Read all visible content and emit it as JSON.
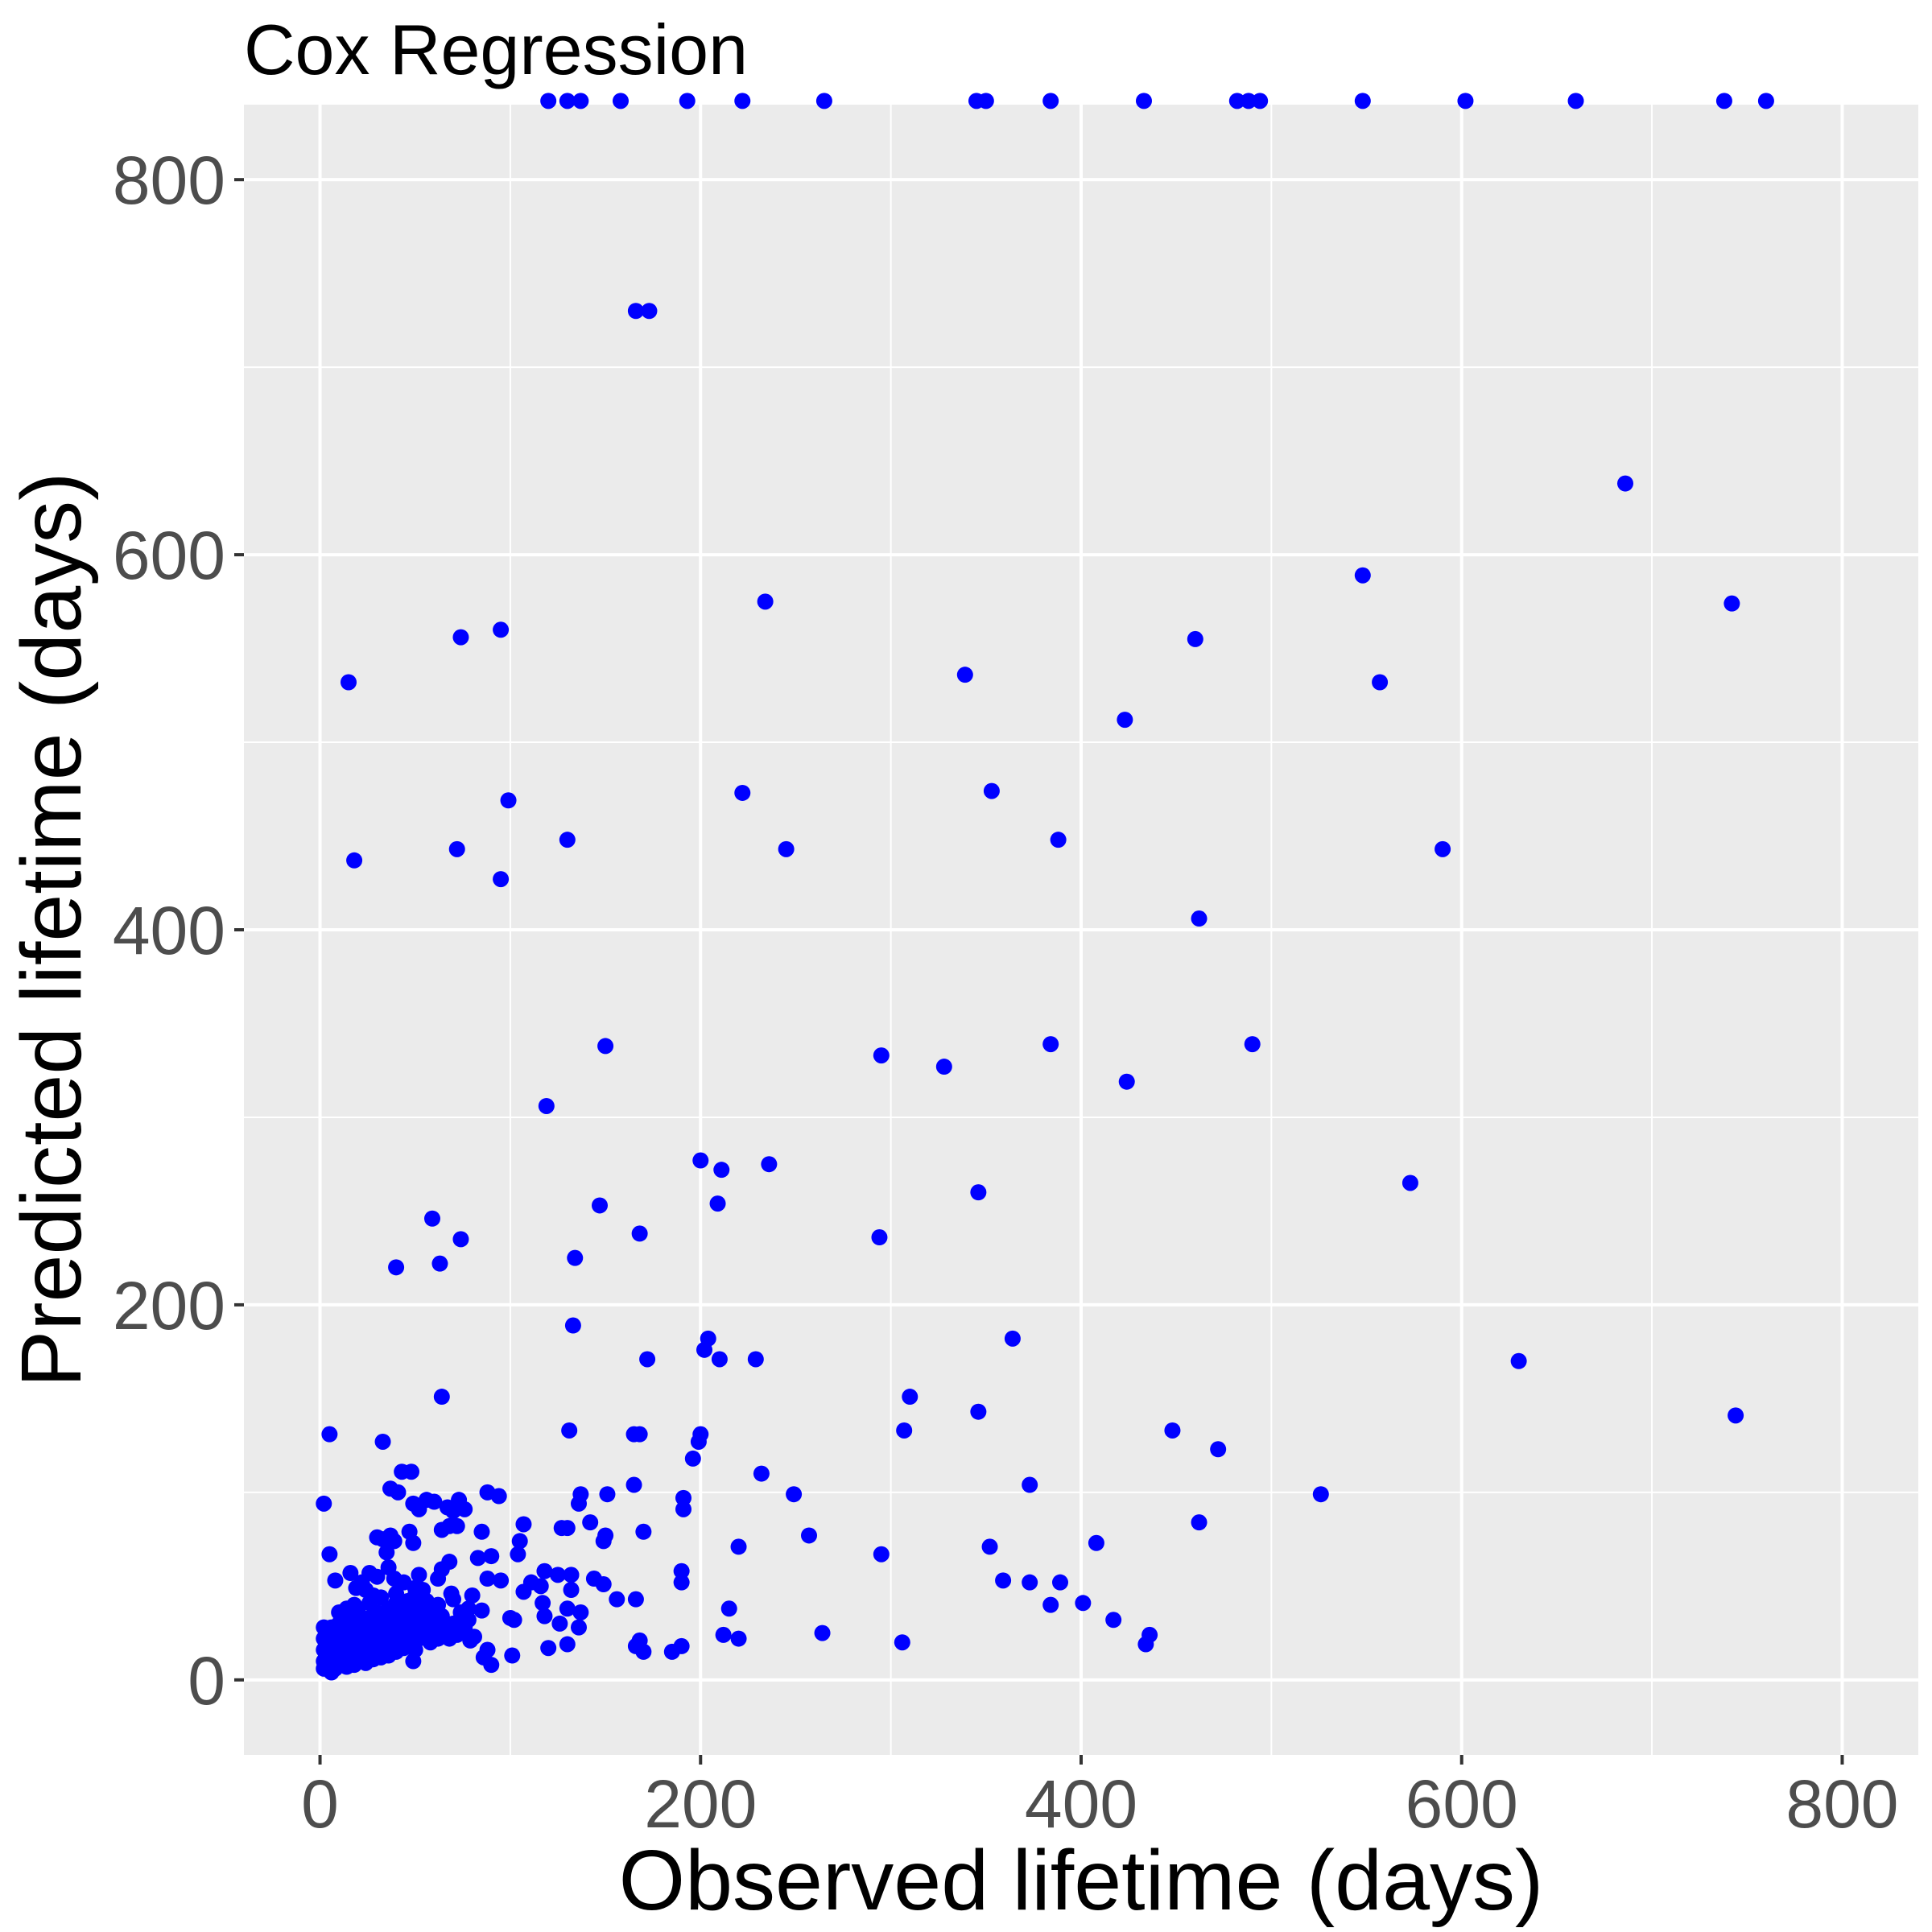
{
  "chart_data": {
    "type": "scatter",
    "title": "Cox Regression",
    "xlabel": "Observed lifetime (days)",
    "ylabel": "Predicted lifetime (days)",
    "xlim": [
      -40,
      840
    ],
    "ylim": [
      -40,
      840
    ],
    "x_ticks": [
      0,
      200,
      400,
      600,
      800
    ],
    "y_ticks": [
      0,
      200,
      400,
      600,
      800
    ],
    "grid": true,
    "legend": "none",
    "point_color": "#0000ff",
    "panel_color": "#ebebeb",
    "grid_color": "#ffffff",
    "series": [
      {
        "points": [
          [
            120,
            842
          ],
          [
            130,
            842
          ],
          [
            137,
            842
          ],
          [
            158,
            842
          ],
          [
            193,
            842
          ],
          [
            222,
            842
          ],
          [
            265,
            842
          ],
          [
            345,
            842
          ],
          [
            350,
            842
          ],
          [
            384,
            842
          ],
          [
            433,
            842
          ],
          [
            482,
            842
          ],
          [
            488,
            842
          ],
          [
            494,
            842
          ],
          [
            548,
            842
          ],
          [
            602,
            842
          ],
          [
            660,
            842
          ],
          [
            738,
            842
          ],
          [
            760,
            842
          ],
          [
            166,
            730
          ],
          [
            173,
            730
          ],
          [
            686,
            638
          ],
          [
            548,
            589
          ],
          [
            742,
            574
          ],
          [
            234,
            575
          ],
          [
            95,
            560
          ],
          [
            74,
            556
          ],
          [
            460,
            555
          ],
          [
            339,
            536
          ],
          [
            15,
            532
          ],
          [
            557,
            532
          ],
          [
            423,
            512
          ],
          [
            222,
            473
          ],
          [
            353,
            474
          ],
          [
            99,
            469
          ],
          [
            130,
            448
          ],
          [
            388,
            448
          ],
          [
            245,
            443
          ],
          [
            72,
            443
          ],
          [
            590,
            443
          ],
          [
            18,
            437
          ],
          [
            95,
            427
          ],
          [
            462,
            406
          ],
          [
            150,
            338
          ],
          [
            384,
            339
          ],
          [
            490,
            339
          ],
          [
            295,
            333
          ],
          [
            328,
            327
          ],
          [
            424,
            319
          ],
          [
            119,
            306
          ],
          [
            200,
            277
          ],
          [
            211,
            272
          ],
          [
            236,
            275
          ],
          [
            346,
            260
          ],
          [
            573,
            265
          ],
          [
            147,
            253
          ],
          [
            209,
            254
          ],
          [
            59,
            246
          ],
          [
            168,
            238
          ],
          [
            294,
            236
          ],
          [
            74,
            235
          ],
          [
            134,
            225
          ],
          [
            63,
            222
          ],
          [
            40,
            220
          ],
          [
            133,
            189
          ],
          [
            204,
            182
          ],
          [
            202,
            176
          ],
          [
            364,
            182
          ],
          [
            172,
            171
          ],
          [
            210,
            171
          ],
          [
            229,
            171
          ],
          [
            630,
            170
          ],
          [
            64,
            151
          ],
          [
            310,
            151
          ],
          [
            744,
            141
          ],
          [
            346,
            143
          ],
          [
            448,
            133
          ],
          [
            307,
            133
          ],
          [
            131,
            133
          ],
          [
            5,
            131
          ],
          [
            165,
            131
          ],
          [
            168,
            131
          ],
          [
            200,
            131
          ],
          [
            199,
            127
          ],
          [
            33,
            127
          ],
          [
            472,
            123
          ],
          [
            196,
            118
          ],
          [
            43,
            111
          ],
          [
            48,
            111
          ],
          [
            232,
            110
          ],
          [
            165,
            104
          ],
          [
            373,
            104
          ],
          [
            37,
            102
          ],
          [
            41,
            100
          ],
          [
            88,
            100
          ],
          [
            94,
            98
          ],
          [
            137,
            99
          ],
          [
            151,
            99
          ],
          [
            249,
            99
          ],
          [
            526,
            99
          ],
          [
            191,
            97
          ],
          [
            56,
            96
          ],
          [
            73,
            96
          ],
          [
            2,
            94
          ],
          [
            49,
            94
          ],
          [
            60,
            95
          ],
          [
            136,
            94
          ],
          [
            191,
            91
          ],
          [
            52,
            91
          ],
          [
            67,
            92
          ],
          [
            70,
            90
          ],
          [
            76,
            91
          ],
          [
            107,
            83
          ],
          [
            142,
            84
          ],
          [
            462,
            84
          ],
          [
            68,
            82
          ],
          [
            72,
            82
          ],
          [
            127,
            81
          ],
          [
            130,
            81
          ],
          [
            64,
            80
          ],
          [
            85,
            79
          ],
          [
            170,
            79
          ],
          [
            47,
            79
          ],
          [
            150,
            77
          ],
          [
            257,
            77
          ],
          [
            37,
            77
          ],
          [
            30,
            76
          ],
          [
            105,
            74
          ],
          [
            149,
            74
          ],
          [
            33,
            75
          ],
          [
            39,
            74
          ],
          [
            408,
            73
          ],
          [
            49,
            73
          ],
          [
            220,
            71
          ],
          [
            352,
            71
          ],
          [
            295,
            67
          ],
          [
            5,
            67
          ],
          [
            104,
            67
          ],
          [
            35,
            68
          ],
          [
            83,
            65
          ],
          [
            90,
            66
          ],
          [
            68,
            63
          ],
          [
            64,
            59
          ],
          [
            52,
            56
          ],
          [
            190,
            58
          ],
          [
            118,
            58
          ],
          [
            125,
            56
          ],
          [
            132,
            56
          ],
          [
            16,
            57
          ],
          [
            26,
            57
          ],
          [
            39,
            54
          ],
          [
            62,
            54
          ],
          [
            88,
            54
          ],
          [
            95,
            53
          ],
          [
            8,
            53
          ],
          [
            111,
            52
          ],
          [
            190,
            52
          ],
          [
            373,
            52
          ],
          [
            389,
            52
          ],
          [
            144,
            54
          ],
          [
            149,
            51
          ],
          [
            359,
            53
          ],
          [
            116,
            50
          ],
          [
            132,
            48
          ],
          [
            19,
            49
          ],
          [
            50,
            49
          ],
          [
            107,
            47
          ],
          [
            80,
            45
          ],
          [
            69,
            46
          ],
          [
            166,
            43
          ],
          [
            156,
            43
          ],
          [
            117,
            41
          ],
          [
            401,
            41
          ],
          [
            384,
            40
          ],
          [
            78,
            38
          ],
          [
            130,
            38
          ],
          [
            48,
            38
          ],
          [
            57,
            38
          ],
          [
            215,
            38
          ],
          [
            137,
            36
          ],
          [
            85,
            37
          ],
          [
            118,
            34
          ],
          [
            100,
            33
          ],
          [
            102,
            32
          ],
          [
            417,
            32
          ],
          [
            136,
            28
          ],
          [
            126,
            30
          ],
          [
            264,
            25
          ],
          [
            212,
            24
          ],
          [
            436,
            24
          ],
          [
            81,
            23
          ],
          [
            62,
            22
          ],
          [
            220,
            22
          ],
          [
            168,
            21
          ],
          [
            79,
            21
          ],
          [
            130,
            19
          ],
          [
            434,
            19
          ],
          [
            306,
            20
          ],
          [
            30,
            18
          ],
          [
            40,
            17
          ],
          [
            120,
            17
          ],
          [
            190,
            18
          ],
          [
            88,
            16
          ],
          [
            166,
            18
          ],
          [
            101,
            13
          ],
          [
            170,
            15
          ],
          [
            185,
            15
          ],
          [
            86,
            12
          ],
          [
            90,
            8
          ],
          [
            49,
            10
          ],
          [
            2,
            28
          ],
          [
            2,
            22
          ],
          [
            2,
            16
          ],
          [
            2,
            10
          ],
          [
            2,
            6
          ],
          [
            4,
            25
          ],
          [
            4,
            19
          ],
          [
            4,
            13
          ],
          [
            4,
            7
          ],
          [
            6,
            28
          ],
          [
            6,
            22
          ],
          [
            6,
            16
          ],
          [
            6,
            10
          ],
          [
            6,
            4
          ],
          [
            8,
            24
          ],
          [
            8,
            18
          ],
          [
            8,
            12
          ],
          [
            8,
            6
          ],
          [
            10,
            30
          ],
          [
            10,
            20
          ],
          [
            10,
            14
          ],
          [
            10,
            8
          ],
          [
            12,
            26
          ],
          [
            12,
            16
          ],
          [
            12,
            10
          ],
          [
            14,
            22
          ],
          [
            14,
            13
          ],
          [
            14,
            7
          ],
          [
            16,
            32
          ],
          [
            16,
            18
          ],
          [
            16,
            11
          ],
          [
            18,
            27
          ],
          [
            18,
            20
          ],
          [
            18,
            14
          ],
          [
            18,
            8
          ],
          [
            20,
            36
          ],
          [
            20,
            24
          ],
          [
            20,
            16
          ],
          [
            20,
            10
          ],
          [
            22,
            30
          ],
          [
            22,
            19
          ],
          [
            22,
            12
          ],
          [
            24,
            26
          ],
          [
            24,
            15
          ],
          [
            24,
            9
          ],
          [
            26,
            41
          ],
          [
            26,
            33
          ],
          [
            26,
            22
          ],
          [
            26,
            14
          ],
          [
            28,
            29
          ],
          [
            28,
            18
          ],
          [
            28,
            11
          ],
          [
            30,
            36
          ],
          [
            30,
            25
          ],
          [
            30,
            15
          ],
          [
            32,
            44
          ],
          [
            32,
            31
          ],
          [
            32,
            20
          ],
          [
            32,
            12
          ],
          [
            34,
            27
          ],
          [
            34,
            16
          ],
          [
            36,
            38
          ],
          [
            36,
            22
          ],
          [
            36,
            13
          ],
          [
            38,
            33
          ],
          [
            38,
            18
          ],
          [
            40,
            46
          ],
          [
            40,
            27
          ],
          [
            40,
            15
          ],
          [
            42,
            38
          ],
          [
            42,
            22
          ],
          [
            44,
            31
          ],
          [
            44,
            17
          ],
          [
            46,
            42
          ],
          [
            46,
            25
          ],
          [
            48,
            35
          ],
          [
            48,
            19
          ],
          [
            50,
            28
          ],
          [
            50,
            16
          ],
          [
            52,
            40
          ],
          [
            52,
            22
          ],
          [
            54,
            32
          ],
          [
            56,
            26
          ],
          [
            58,
            36
          ],
          [
            58,
            20
          ],
          [
            60,
            30
          ],
          [
            62,
            24
          ],
          [
            64,
            34
          ],
          [
            66,
            28
          ],
          [
            68,
            22
          ],
          [
            70,
            30
          ],
          [
            72,
            24
          ],
          [
            74,
            36
          ],
          [
            76,
            28
          ],
          [
            78,
            32
          ],
          [
            24,
            48
          ],
          [
            30,
            55
          ],
          [
            36,
            60
          ],
          [
            44,
            52
          ],
          [
            50,
            45
          ],
          [
            56,
            42
          ],
          [
            62,
            40
          ],
          [
            70,
            43
          ],
          [
            22,
            52
          ],
          [
            14,
            38
          ],
          [
            10,
            36
          ],
          [
            28,
            45
          ],
          [
            18,
            40
          ],
          [
            40,
            41
          ],
          [
            54,
            48
          ]
        ]
      }
    ]
  }
}
